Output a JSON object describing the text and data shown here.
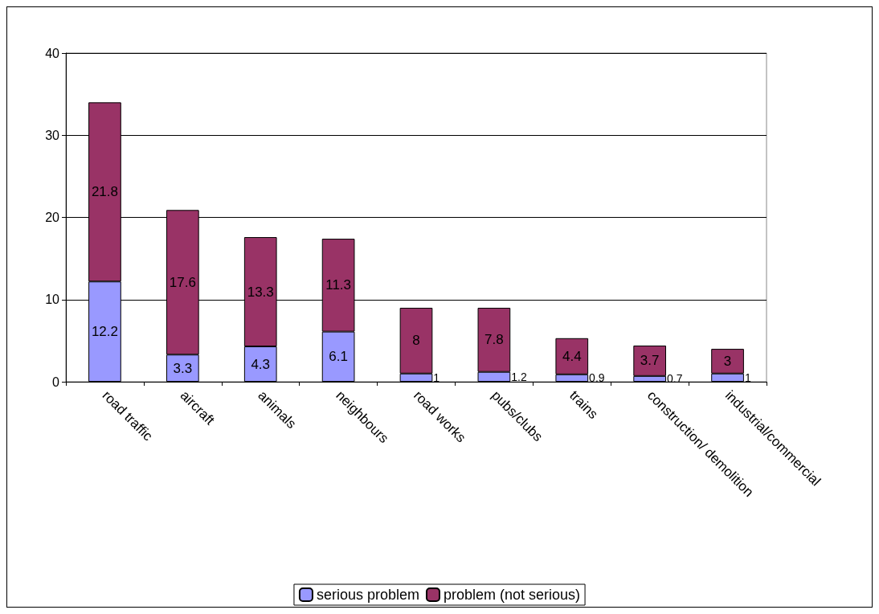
{
  "chart_data": {
    "type": "bar",
    "stacked": true,
    "categories": [
      "road traffic",
      "aircraft",
      "animals",
      "neighbours",
      "road works",
      "pubs/clubs",
      "trains",
      "construction/ demolition",
      "industrial/commercial"
    ],
    "series": [
      {
        "name": "serious problem",
        "color": "#9999ff",
        "values": [
          12.2,
          3.3,
          4.3,
          6.1,
          1,
          1.2,
          0.9,
          0.7,
          1
        ]
      },
      {
        "name": "problem (not serious)",
        "color": "#993366",
        "values": [
          21.8,
          17.6,
          13.3,
          11.3,
          8,
          7.8,
          4.4,
          3.7,
          3
        ]
      }
    ],
    "ylim": [
      0,
      40
    ],
    "yticks": [
      0,
      10,
      20,
      30,
      40
    ],
    "grid": "y",
    "legend": "bottom",
    "data_labels": true
  }
}
